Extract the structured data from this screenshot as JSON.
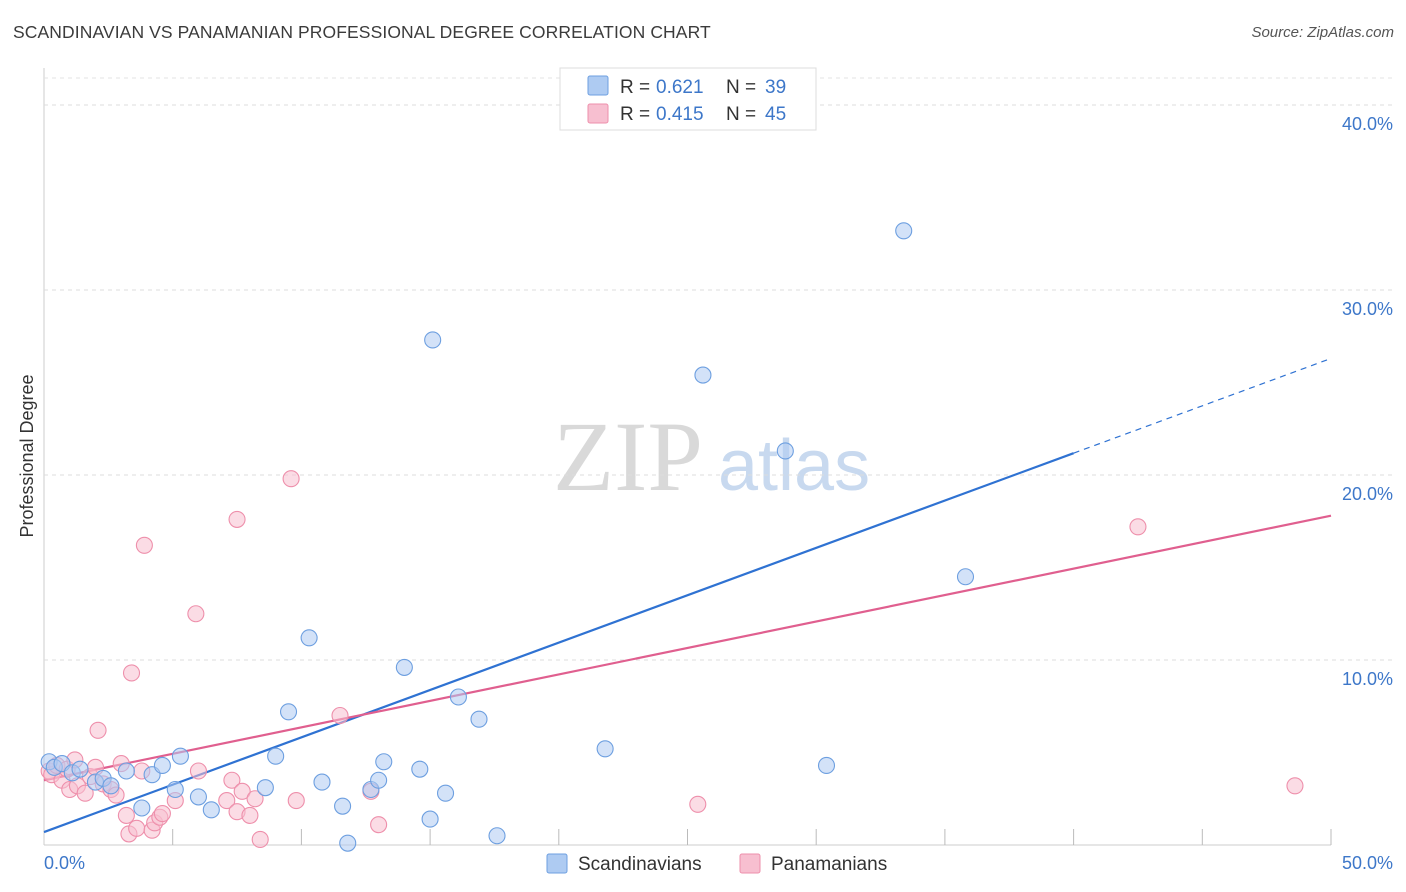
{
  "title": "SCANDINAVIAN VS PANAMANIAN PROFESSIONAL DEGREE CORRELATION CHART",
  "source": "Source: ZipAtlas.com",
  "watermark": {
    "zip": "ZIP",
    "atlas": "atlas"
  },
  "legend_top": [
    {
      "r_label": "R =",
      "r_value": "0.621",
      "n_label": "N =",
      "n_value": "39",
      "color": "#aecbf2",
      "stroke": "#6d9fe0"
    },
    {
      "r_label": "R =",
      "r_value": "0.415",
      "n_label": "N =",
      "n_value": "45",
      "color": "#f7bfd0",
      "stroke": "#ee8fab"
    }
  ],
  "legend_bottom": [
    "Scandinavians",
    "Panamanians"
  ],
  "chart_data": {
    "type": "scatter",
    "title": "SCANDINAVIAN VS PANAMANIAN PROFESSIONAL DEGREE CORRELATION CHART",
    "xlabel": "",
    "ylabel": "Professional Degree",
    "xlim": [
      0,
      50
    ],
    "ylim": [
      0,
      42
    ],
    "x_tick_labels": {
      "left": "0.0%",
      "right": "50.0%"
    },
    "y_ticks": [
      10,
      20,
      30,
      40
    ],
    "y_tick_labels": [
      "10.0%",
      "20.0%",
      "30.0%",
      "40.0%"
    ],
    "grid": true,
    "series": [
      {
        "name": "Scandinavians",
        "color": "#aecbf2",
        "stroke": "#6d9fe0",
        "line_color": "#2f72d2",
        "trend": {
          "x0": 0,
          "y0": 0.7,
          "x1": 50,
          "y1": 26.3,
          "solid_until": 40
        },
        "points": [
          [
            0.2,
            4.5
          ],
          [
            0.4,
            4.2
          ],
          [
            0.7,
            4.4
          ],
          [
            1.1,
            3.9
          ],
          [
            1.4,
            4.1
          ],
          [
            2.0,
            3.4
          ],
          [
            2.3,
            3.6
          ],
          [
            2.6,
            3.2
          ],
          [
            3.2,
            4.0
          ],
          [
            3.8,
            2.0
          ],
          [
            4.2,
            3.8
          ],
          [
            4.6,
            4.3
          ],
          [
            5.1,
            3.0
          ],
          [
            5.3,
            4.8
          ],
          [
            6.0,
            2.6
          ],
          [
            6.5,
            1.9
          ],
          [
            8.6,
            3.1
          ],
          [
            9.0,
            4.8
          ],
          [
            9.5,
            7.2
          ],
          [
            10.3,
            11.2
          ],
          [
            10.8,
            3.4
          ],
          [
            11.6,
            2.1
          ],
          [
            11.8,
            0.1
          ],
          [
            12.7,
            3.0
          ],
          [
            13.2,
            4.5
          ],
          [
            13.0,
            3.5
          ],
          [
            14.0,
            9.6
          ],
          [
            14.6,
            4.1
          ],
          [
            15.0,
            1.4
          ],
          [
            15.6,
            2.8
          ],
          [
            15.1,
            27.3
          ],
          [
            16.1,
            8.0
          ],
          [
            16.9,
            6.8
          ],
          [
            17.6,
            0.5
          ],
          [
            21.8,
            5.2
          ],
          [
            25.6,
            25.4
          ],
          [
            28.8,
            21.3
          ],
          [
            30.4,
            4.3
          ],
          [
            33.4,
            33.2
          ],
          [
            35.8,
            14.5
          ]
        ]
      },
      {
        "name": "Panamanians",
        "color": "#f7bfd0",
        "stroke": "#ee8fab",
        "line_color": "#e05f8f",
        "trend": {
          "x0": 0,
          "y0": 3.5,
          "x1": 50,
          "y1": 17.8,
          "solid_until": 50
        },
        "points": [
          [
            0.2,
            4.0
          ],
          [
            0.3,
            3.8
          ],
          [
            0.5,
            4.3
          ],
          [
            0.7,
            3.5
          ],
          [
            0.9,
            4.1
          ],
          [
            1.0,
            3.0
          ],
          [
            1.2,
            4.6
          ],
          [
            1.3,
            3.2
          ],
          [
            1.6,
            2.8
          ],
          [
            1.8,
            3.7
          ],
          [
            2.0,
            4.2
          ],
          [
            2.1,
            6.2
          ],
          [
            2.3,
            3.3
          ],
          [
            2.6,
            3.0
          ],
          [
            2.8,
            2.7
          ],
          [
            3.0,
            4.4
          ],
          [
            3.2,
            1.6
          ],
          [
            3.3,
            0.6
          ],
          [
            3.4,
            9.3
          ],
          [
            3.6,
            0.9
          ],
          [
            3.8,
            4.0
          ],
          [
            3.9,
            16.2
          ],
          [
            4.2,
            0.8
          ],
          [
            4.3,
            1.2
          ],
          [
            4.5,
            1.5
          ],
          [
            4.6,
            1.7
          ],
          [
            5.1,
            2.4
          ],
          [
            5.9,
            12.5
          ],
          [
            6.0,
            4.0
          ],
          [
            7.1,
            2.4
          ],
          [
            7.3,
            3.5
          ],
          [
            7.5,
            1.8
          ],
          [
            7.7,
            2.9
          ],
          [
            7.5,
            17.6
          ],
          [
            8.0,
            1.6
          ],
          [
            8.2,
            2.5
          ],
          [
            8.4,
            0.3
          ],
          [
            9.6,
            19.8
          ],
          [
            9.8,
            2.4
          ],
          [
            11.5,
            7.0
          ],
          [
            12.7,
            2.9
          ],
          [
            13.0,
            1.1
          ],
          [
            25.4,
            2.2
          ],
          [
            42.5,
            17.2
          ],
          [
            48.6,
            3.2
          ]
        ]
      }
    ]
  }
}
